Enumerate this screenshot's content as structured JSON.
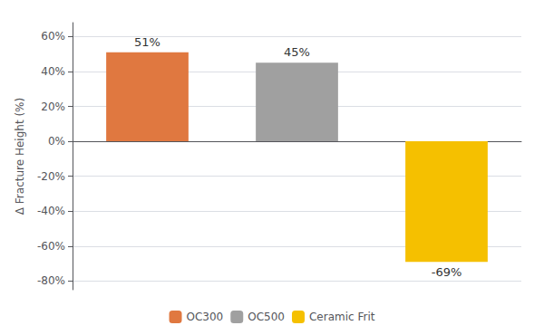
{
  "chart_data": {
    "type": "bar",
    "ylabel": "Δ Fracture Height (%)",
    "categories": [
      "OC300",
      "OC500",
      "Ceramic Frit"
    ],
    "values": [
      51,
      45,
      -69
    ],
    "value_labels": [
      "51%",
      "45%",
      "-69%"
    ],
    "colors": [
      "#E07840",
      "#A0A0A0",
      "#F5C000"
    ],
    "ylim": [
      -85,
      68
    ],
    "yticks": [
      {
        "value": -80,
        "label": "-80%"
      },
      {
        "value": -60,
        "label": "-60%"
      },
      {
        "value": -40,
        "label": "-40%"
      },
      {
        "value": -20,
        "label": "-20%"
      },
      {
        "value": 0,
        "label": "0%"
      },
      {
        "value": 20,
        "label": "20%"
      },
      {
        "value": 40,
        "label": "40%"
      },
      {
        "value": 60,
        "label": "60%"
      }
    ],
    "grid": true,
    "legend": "bottom",
    "data_labels": true,
    "tick_labels": "y"
  }
}
